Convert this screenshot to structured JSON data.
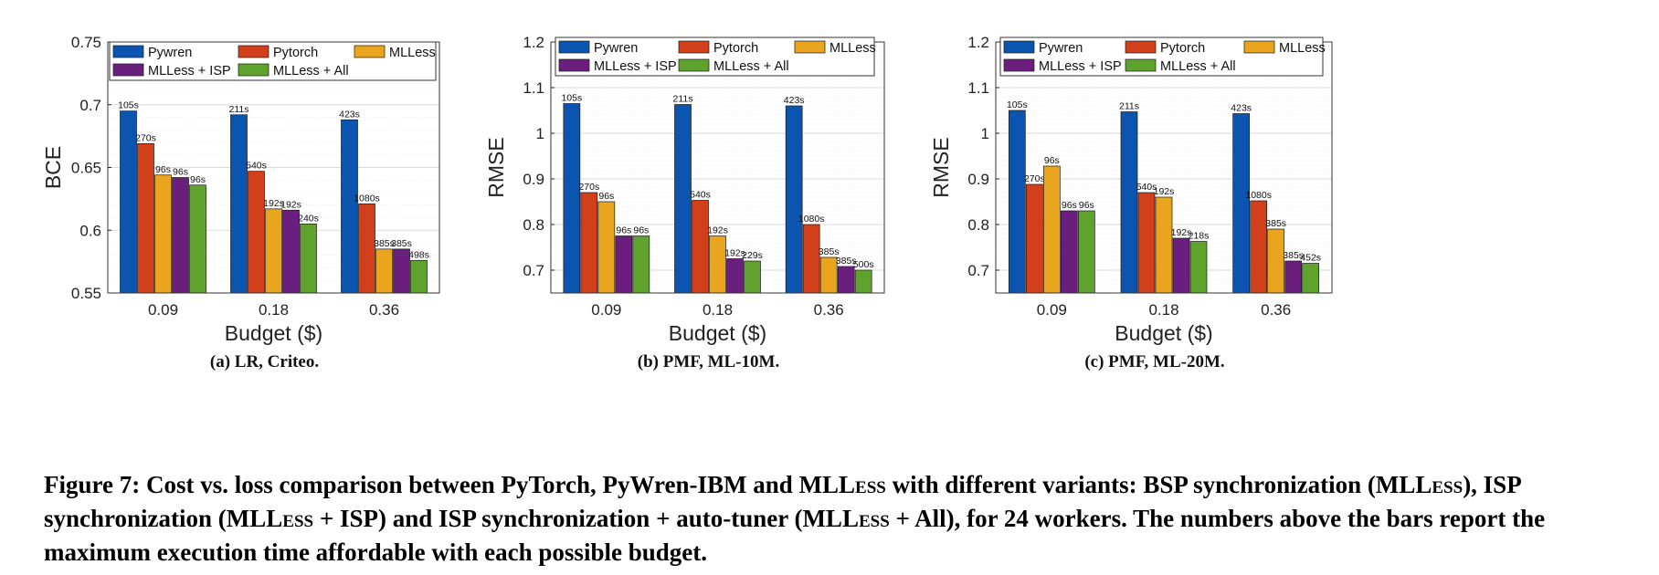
{
  "colors": {
    "Pywren": "#0b55b0",
    "Pytorch": "#d1401a",
    "MLLess": "#eaa51e",
    "MLLess + ISP": "#6a1f7f",
    "MLLess + All": "#5fa32e"
  },
  "chart_data": [
    {
      "type": "bar",
      "subcaption": "(a) LR, Criteo.",
      "xlabel": "Budget ($)",
      "ylabel": "BCE",
      "categories": [
        "0.09",
        "0.18",
        "0.36"
      ],
      "ylim": [
        0.55,
        0.75
      ],
      "yticks": [
        "0.55",
        "0.6",
        "0.65",
        "0.7",
        "0.75"
      ],
      "grid": true,
      "legend_position": "top",
      "series": [
        {
          "name": "Pywren",
          "values": [
            0.695,
            0.692,
            0.688
          ],
          "labels": [
            "105s",
            "211s",
            "423s"
          ]
        },
        {
          "name": "Pytorch",
          "values": [
            0.669,
            0.647,
            0.621
          ],
          "labels": [
            "270s",
            "540s",
            "1080s"
          ]
        },
        {
          "name": "MLLess",
          "values": [
            0.644,
            0.617,
            0.585
          ],
          "labels": [
            "96s",
            "192s",
            "385s"
          ]
        },
        {
          "name": "MLLess + ISP",
          "values": [
            0.642,
            0.616,
            0.585
          ],
          "labels": [
            "96s",
            "192s",
            "385s"
          ]
        },
        {
          "name": "MLLess + All",
          "values": [
            0.636,
            0.605,
            0.576
          ],
          "labels": [
            "96s",
            "240s",
            "498s"
          ]
        }
      ]
    },
    {
      "type": "bar",
      "subcaption": "(b) PMF, ML-10M.",
      "xlabel": "Budget ($)",
      "ylabel": "RMSE",
      "categories": [
        "0.09",
        "0.18",
        "0.36"
      ],
      "ylim": [
        0.65,
        1.2
      ],
      "yticks": [
        "0.7",
        "0.8",
        "0.9",
        "1",
        "1.1",
        "1.2"
      ],
      "grid": true,
      "legend_position": "top",
      "series": [
        {
          "name": "Pywren",
          "values": [
            1.065,
            1.063,
            1.06
          ],
          "labels": [
            "105s",
            "211s",
            "423s"
          ]
        },
        {
          "name": "Pytorch",
          "values": [
            0.87,
            0.853,
            0.8
          ],
          "labels": [
            "270s",
            "540s",
            "1080s"
          ]
        },
        {
          "name": "MLLess",
          "values": [
            0.85,
            0.775,
            0.728
          ],
          "labels": [
            "96s",
            "192s",
            "385s"
          ]
        },
        {
          "name": "MLLess + ISP",
          "values": [
            0.775,
            0.725,
            0.708
          ],
          "labels": [
            "96s",
            "192s",
            "385s"
          ]
        },
        {
          "name": "MLLess + All",
          "values": [
            0.775,
            0.72,
            0.7
          ],
          "labels": [
            "96s",
            "229s",
            "500s"
          ]
        }
      ]
    },
    {
      "type": "bar",
      "subcaption": "(c) PMF, ML-20M.",
      "xlabel": "Budget ($)",
      "ylabel": "RMSE",
      "categories": [
        "0.09",
        "0.18",
        "0.36"
      ],
      "ylim": [
        0.65,
        1.2
      ],
      "yticks": [
        "0.7",
        "0.8",
        "0.9",
        "1",
        "1.1",
        "1.2"
      ],
      "grid": true,
      "legend_position": "top",
      "series": [
        {
          "name": "Pywren",
          "values": [
            1.05,
            1.047,
            1.043
          ],
          "labels": [
            "105s",
            "211s",
            "423s"
          ]
        },
        {
          "name": "Pytorch",
          "values": [
            0.888,
            0.87,
            0.852
          ],
          "labels": [
            "270s",
            "540s",
            "1080s"
          ]
        },
        {
          "name": "MLLess",
          "values": [
            0.928,
            0.86,
            0.79
          ],
          "labels": [
            "96s",
            "192s",
            "385s"
          ]
        },
        {
          "name": "MLLess + ISP",
          "values": [
            0.83,
            0.77,
            0.72
          ],
          "labels": [
            "96s",
            "192s",
            "385s"
          ]
        },
        {
          "name": "MLLess + All",
          "values": [
            0.83,
            0.763,
            0.715
          ],
          "labels": [
            "96s",
            "218s",
            "452s"
          ]
        }
      ]
    }
  ],
  "caption": {
    "part1": "Figure 7: Cost vs. loss comparison between PyTorch, PyWren-IBM and ML",
    "sc1": "Less",
    "part2": " with different variants: BSP synchronization (ML",
    "sc2": "Less",
    "part3": "), ISP synchronization (ML",
    "sc3": "Less",
    "part4": " + ISP) and ISP synchronization + auto-tuner (ML",
    "sc4": "Less",
    "part5": " + All), for 24 workers. The numbers above the bars report the maximum execution time affordable with each possible budget."
  }
}
